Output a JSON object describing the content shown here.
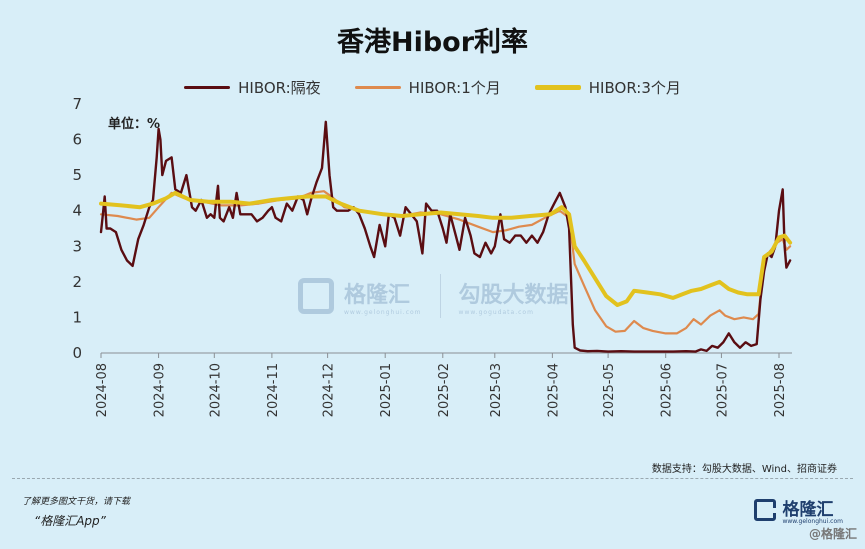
{
  "title": "香港Hibor利率",
  "unit_label": "单位：%",
  "source": "数据支持：勾股大数据、Wind、招商证券",
  "promo_line1": "了解更多图文干货，请下载",
  "promo_line2": "“格隆汇App”",
  "footer_logo_text": "格隆汇",
  "footer_logo_url": "www.gelonghui.com",
  "footer_mark": "@格隆汇",
  "watermark": {
    "brand": "格隆汇",
    "brand_url": "www.gelonghui.com",
    "partner": "勾股大数据",
    "partner_url": "www.gogudata.com"
  },
  "colors": {
    "background": "#d8eef8",
    "overnight": "#5a0d12",
    "one_month": "#de8a4e",
    "three_month": "#e2c21e"
  },
  "chart_data": {
    "type": "line",
    "title": "香港Hibor利率",
    "ylabel": "单位：%",
    "ylim": [
      0,
      7
    ],
    "yticks": [
      "0",
      "1",
      "2",
      "3",
      "4",
      "5",
      "6",
      "7"
    ],
    "xlim": [
      "2024-08-01",
      "2025-08-08"
    ],
    "xticks": [
      "2024-08",
      "2024-09",
      "2024-10",
      "2024-11",
      "2024-12",
      "2025-01",
      "2025-02",
      "2025-03",
      "2025-04",
      "2025-05",
      "2025-06",
      "2025-07",
      "2025-08"
    ],
    "grid": false,
    "legend_position": "top",
    "series": [
      {
        "name": "HIBOR:隔夜",
        "color": "#5a0d12",
        "points": [
          [
            "2024-08-01",
            3.4
          ],
          [
            "2024-08-02",
            3.9
          ],
          [
            "2024-08-03",
            4.4
          ],
          [
            "2024-08-04",
            3.5
          ],
          [
            "2024-08-06",
            3.5
          ],
          [
            "2024-08-09",
            3.4
          ],
          [
            "2024-08-12",
            2.9
          ],
          [
            "2024-08-15",
            2.6
          ],
          [
            "2024-08-18",
            2.45
          ],
          [
            "2024-08-21",
            3.2
          ],
          [
            "2024-08-24",
            3.6
          ],
          [
            "2024-08-27",
            4.1
          ],
          [
            "2024-08-29",
            4.3
          ],
          [
            "2024-08-31",
            5.5
          ],
          [
            "2024-09-01",
            6.3
          ],
          [
            "2024-09-02",
            6.0
          ],
          [
            "2024-09-03",
            5.0
          ],
          [
            "2024-09-05",
            5.4
          ],
          [
            "2024-09-08",
            5.5
          ],
          [
            "2024-09-10",
            4.6
          ],
          [
            "2024-09-13",
            4.5
          ],
          [
            "2024-09-16",
            5.0
          ],
          [
            "2024-09-19",
            4.1
          ],
          [
            "2024-09-21",
            4.0
          ],
          [
            "2024-09-24",
            4.3
          ],
          [
            "2024-09-27",
            3.8
          ],
          [
            "2024-09-29",
            3.9
          ],
          [
            "2024-10-01",
            3.8
          ],
          [
            "2024-10-03",
            4.7
          ],
          [
            "2024-10-04",
            3.8
          ],
          [
            "2024-10-06",
            3.7
          ],
          [
            "2024-10-09",
            4.1
          ],
          [
            "2024-10-11",
            3.8
          ],
          [
            "2024-10-13",
            4.5
          ],
          [
            "2024-10-15",
            3.9
          ],
          [
            "2024-10-18",
            3.9
          ],
          [
            "2024-10-21",
            3.9
          ],
          [
            "2024-10-24",
            3.7
          ],
          [
            "2024-10-27",
            3.8
          ],
          [
            "2024-10-30",
            4.0
          ],
          [
            "2024-11-01",
            4.1
          ],
          [
            "2024-11-03",
            3.8
          ],
          [
            "2024-11-06",
            3.7
          ],
          [
            "2024-11-09",
            4.2
          ],
          [
            "2024-11-12",
            4.0
          ],
          [
            "2024-11-15",
            4.4
          ],
          [
            "2024-11-18",
            4.3
          ],
          [
            "2024-11-20",
            3.9
          ],
          [
            "2024-11-22",
            4.3
          ],
          [
            "2024-11-25",
            4.8
          ],
          [
            "2024-11-28",
            5.2
          ],
          [
            "2024-11-30",
            6.5
          ],
          [
            "2024-12-02",
            5.0
          ],
          [
            "2024-12-04",
            4.1
          ],
          [
            "2024-12-06",
            4.0
          ],
          [
            "2024-12-09",
            4.0
          ],
          [
            "2024-12-12",
            4.0
          ],
          [
            "2024-12-15",
            4.1
          ],
          [
            "2024-12-18",
            3.9
          ],
          [
            "2024-12-21",
            3.5
          ],
          [
            "2024-12-24",
            3.0
          ],
          [
            "2024-12-26",
            2.7
          ],
          [
            "2024-12-29",
            3.6
          ],
          [
            "2025-01-01",
            3.0
          ],
          [
            "2025-01-03",
            3.9
          ],
          [
            "2025-01-06",
            3.8
          ],
          [
            "2025-01-09",
            3.3
          ],
          [
            "2025-01-12",
            4.1
          ],
          [
            "2025-01-15",
            3.9
          ],
          [
            "2025-01-18",
            3.7
          ],
          [
            "2025-01-21",
            2.8
          ],
          [
            "2025-01-23",
            4.2
          ],
          [
            "2025-01-26",
            4.0
          ],
          [
            "2025-01-29",
            4.0
          ],
          [
            "2025-02-01",
            3.5
          ],
          [
            "2025-02-03",
            3.1
          ],
          [
            "2025-02-05",
            3.9
          ],
          [
            "2025-02-08",
            3.3
          ],
          [
            "2025-02-10",
            2.9
          ],
          [
            "2025-02-13",
            3.8
          ],
          [
            "2025-02-16",
            3.3
          ],
          [
            "2025-02-18",
            2.8
          ],
          [
            "2025-02-21",
            2.7
          ],
          [
            "2025-02-24",
            3.1
          ],
          [
            "2025-02-27",
            2.8
          ],
          [
            "2025-03-01",
            3.0
          ],
          [
            "2025-03-04",
            3.9
          ],
          [
            "2025-03-06",
            3.2
          ],
          [
            "2025-03-09",
            3.1
          ],
          [
            "2025-03-12",
            3.3
          ],
          [
            "2025-03-15",
            3.3
          ],
          [
            "2025-03-18",
            3.1
          ],
          [
            "2025-03-21",
            3.3
          ],
          [
            "2025-03-24",
            3.1
          ],
          [
            "2025-03-27",
            3.4
          ],
          [
            "2025-03-30",
            3.9
          ],
          [
            "2025-04-02",
            4.2
          ],
          [
            "2025-04-05",
            4.5
          ],
          [
            "2025-04-08",
            4.1
          ],
          [
            "2025-04-10",
            3.5
          ],
          [
            "2025-04-12",
            0.8
          ],
          [
            "2025-04-13",
            0.15
          ],
          [
            "2025-04-16",
            0.07
          ],
          [
            "2025-04-20",
            0.05
          ],
          [
            "2025-04-25",
            0.06
          ],
          [
            "2025-05-01",
            0.04
          ],
          [
            "2025-05-08",
            0.05
          ],
          [
            "2025-05-15",
            0.04
          ],
          [
            "2025-05-22",
            0.04
          ],
          [
            "2025-05-29",
            0.04
          ],
          [
            "2025-06-05",
            0.04
          ],
          [
            "2025-06-12",
            0.05
          ],
          [
            "2025-06-17",
            0.04
          ],
          [
            "2025-06-20",
            0.1
          ],
          [
            "2025-06-23",
            0.06
          ],
          [
            "2025-06-26",
            0.2
          ],
          [
            "2025-06-29",
            0.15
          ],
          [
            "2025-07-02",
            0.3
          ],
          [
            "2025-07-05",
            0.55
          ],
          [
            "2025-07-08",
            0.3
          ],
          [
            "2025-07-11",
            0.15
          ],
          [
            "2025-07-14",
            0.3
          ],
          [
            "2025-07-17",
            0.2
          ],
          [
            "2025-07-20",
            0.25
          ],
          [
            "2025-07-22",
            1.5
          ],
          [
            "2025-07-24",
            2.3
          ],
          [
            "2025-07-26",
            2.8
          ],
          [
            "2025-07-28",
            2.7
          ],
          [
            "2025-07-30",
            3.0
          ],
          [
            "2025-08-01",
            4.0
          ],
          [
            "2025-08-03",
            4.6
          ],
          [
            "2025-08-04",
            3.0
          ],
          [
            "2025-08-05",
            2.4
          ],
          [
            "2025-08-07",
            2.6
          ]
        ]
      },
      {
        "name": "HIBOR:1个月",
        "color": "#de8a4e",
        "points": [
          [
            "2024-08-01",
            3.9
          ],
          [
            "2024-08-10",
            3.85
          ],
          [
            "2024-08-20",
            3.75
          ],
          [
            "2024-08-27",
            3.8
          ],
          [
            "2024-09-01",
            4.1
          ],
          [
            "2024-09-08",
            4.5
          ],
          [
            "2024-09-15",
            4.35
          ],
          [
            "2024-09-25",
            4.25
          ],
          [
            "2024-10-05",
            4.15
          ],
          [
            "2024-10-15",
            4.15
          ],
          [
            "2024-10-25",
            4.2
          ],
          [
            "2024-11-05",
            4.3
          ],
          [
            "2024-11-15",
            4.35
          ],
          [
            "2024-11-22",
            4.5
          ],
          [
            "2024-11-29",
            4.55
          ],
          [
            "2024-12-03",
            4.4
          ],
          [
            "2024-12-10",
            4.1
          ],
          [
            "2024-12-20",
            4.0
          ],
          [
            "2024-12-31",
            3.9
          ],
          [
            "2025-01-10",
            3.85
          ],
          [
            "2025-01-20",
            3.95
          ],
          [
            "2025-01-31",
            3.9
          ],
          [
            "2025-02-10",
            3.75
          ],
          [
            "2025-02-20",
            3.55
          ],
          [
            "2025-02-28",
            3.4
          ],
          [
            "2025-03-07",
            3.45
          ],
          [
            "2025-03-14",
            3.55
          ],
          [
            "2025-03-21",
            3.6
          ],
          [
            "2025-03-28",
            3.8
          ],
          [
            "2025-04-05",
            4.0
          ],
          [
            "2025-04-10",
            3.8
          ],
          [
            "2025-04-13",
            2.5
          ],
          [
            "2025-04-18",
            1.9
          ],
          [
            "2025-04-24",
            1.2
          ],
          [
            "2025-04-30",
            0.75
          ],
          [
            "2025-05-05",
            0.6
          ],
          [
            "2025-05-10",
            0.62
          ],
          [
            "2025-05-15",
            0.9
          ],
          [
            "2025-05-20",
            0.7
          ],
          [
            "2025-05-25",
            0.62
          ],
          [
            "2025-06-01",
            0.55
          ],
          [
            "2025-06-07",
            0.55
          ],
          [
            "2025-06-12",
            0.7
          ],
          [
            "2025-06-16",
            0.95
          ],
          [
            "2025-06-20",
            0.8
          ],
          [
            "2025-06-25",
            1.05
          ],
          [
            "2025-06-30",
            1.2
          ],
          [
            "2025-07-03",
            1.05
          ],
          [
            "2025-07-08",
            0.95
          ],
          [
            "2025-07-13",
            1.0
          ],
          [
            "2025-07-18",
            0.95
          ],
          [
            "2025-07-21",
            1.1
          ],
          [
            "2025-07-24",
            2.6
          ],
          [
            "2025-07-27",
            2.85
          ],
          [
            "2025-07-31",
            3.1
          ],
          [
            "2025-08-03",
            3.2
          ],
          [
            "2025-08-05",
            2.9
          ],
          [
            "2025-08-07",
            3.0
          ]
        ]
      },
      {
        "name": "HIBOR:3个月",
        "color": "#e2c21e",
        "points": [
          [
            "2024-08-01",
            4.2
          ],
          [
            "2024-08-12",
            4.15
          ],
          [
            "2024-08-22",
            4.1
          ],
          [
            "2024-08-29",
            4.2
          ],
          [
            "2024-09-05",
            4.35
          ],
          [
            "2024-09-10",
            4.5
          ],
          [
            "2024-09-18",
            4.3
          ],
          [
            "2024-09-28",
            4.25
          ],
          [
            "2024-10-10",
            4.25
          ],
          [
            "2024-10-20",
            4.2
          ],
          [
            "2024-11-01",
            4.3
          ],
          [
            "2024-11-10",
            4.35
          ],
          [
            "2024-11-20",
            4.4
          ],
          [
            "2024-11-30",
            4.4
          ],
          [
            "2024-12-08",
            4.2
          ],
          [
            "2024-12-18",
            4.0
          ],
          [
            "2024-12-31",
            3.9
          ],
          [
            "2025-01-10",
            3.85
          ],
          [
            "2025-01-20",
            3.9
          ],
          [
            "2025-01-31",
            3.95
          ],
          [
            "2025-02-10",
            3.9
          ],
          [
            "2025-02-20",
            3.85
          ],
          [
            "2025-02-28",
            3.8
          ],
          [
            "2025-03-10",
            3.8
          ],
          [
            "2025-03-20",
            3.85
          ],
          [
            "2025-03-31",
            3.9
          ],
          [
            "2025-04-06",
            4.1
          ],
          [
            "2025-04-10",
            3.9
          ],
          [
            "2025-04-13",
            3.0
          ],
          [
            "2025-04-18",
            2.6
          ],
          [
            "2025-04-24",
            2.1
          ],
          [
            "2025-04-30",
            1.6
          ],
          [
            "2025-05-06",
            1.35
          ],
          [
            "2025-05-11",
            1.45
          ],
          [
            "2025-05-15",
            1.75
          ],
          [
            "2025-05-22",
            1.7
          ],
          [
            "2025-05-29",
            1.65
          ],
          [
            "2025-06-05",
            1.55
          ],
          [
            "2025-06-10",
            1.65
          ],
          [
            "2025-06-15",
            1.75
          ],
          [
            "2025-06-20",
            1.8
          ],
          [
            "2025-06-25",
            1.9
          ],
          [
            "2025-06-30",
            2.0
          ],
          [
            "2025-07-05",
            1.8
          ],
          [
            "2025-07-10",
            1.7
          ],
          [
            "2025-07-15",
            1.65
          ],
          [
            "2025-07-21",
            1.65
          ],
          [
            "2025-07-24",
            2.7
          ],
          [
            "2025-07-28",
            2.85
          ],
          [
            "2025-08-01",
            3.25
          ],
          [
            "2025-08-04",
            3.3
          ],
          [
            "2025-08-07",
            3.1
          ]
        ]
      }
    ]
  }
}
